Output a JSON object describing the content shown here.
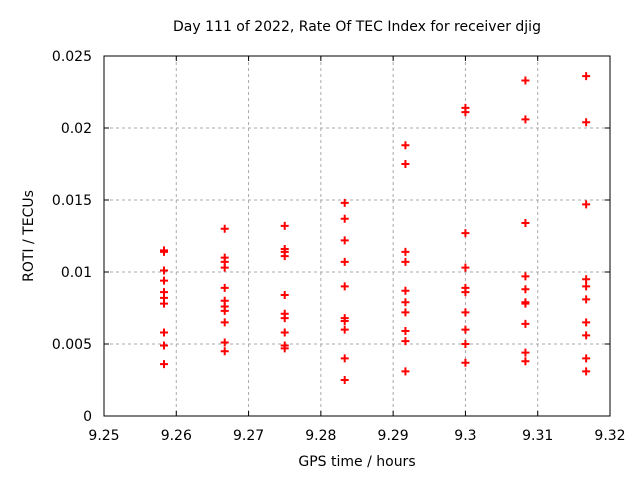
{
  "window": {
    "background": "#ffffff"
  },
  "chart_data": {
    "type": "scatter",
    "title": "Day 111 of 2022, Rate Of TEC Index for receiver djig",
    "xlabel": "GPS time / hours",
    "ylabel": "ROTI / TECUs",
    "xlim": [
      9.25,
      9.32
    ],
    "ylim": [
      0,
      0.025
    ],
    "xticks": [
      9.25,
      9.26,
      9.27,
      9.28,
      9.29,
      9.3,
      9.31,
      9.32
    ],
    "xtick_labels": [
      "9.25",
      "9.26",
      "9.27",
      "9.28",
      "9.29",
      "9.3",
      "9.31",
      "9.32"
    ],
    "yticks": [
      0,
      0.005,
      0.01,
      0.015,
      0.02,
      0.025
    ],
    "ytick_labels": [
      "0",
      "0.005",
      "0.01",
      "0.015",
      "0.02",
      "0.025"
    ],
    "grid": true,
    "legend": "none",
    "marker": "plus",
    "marker_color": "#ff0000",
    "grid_color": "#aaaaaa",
    "border_color": "#000000",
    "series": [
      {
        "name": "roti",
        "points": [
          [
            9.2583,
            0.0115
          ],
          [
            9.2583,
            0.0114
          ],
          [
            9.2583,
            0.0101
          ],
          [
            9.2583,
            0.0094
          ],
          [
            9.2583,
            0.0086
          ],
          [
            9.2583,
            0.0082
          ],
          [
            9.2583,
            0.0078
          ],
          [
            9.2583,
            0.0058
          ],
          [
            9.2583,
            0.0049
          ],
          [
            9.2583,
            0.0036
          ],
          [
            9.2667,
            0.013
          ],
          [
            9.2667,
            0.011
          ],
          [
            9.2667,
            0.0107
          ],
          [
            9.2667,
            0.0103
          ],
          [
            9.2667,
            0.0089
          ],
          [
            9.2667,
            0.008
          ],
          [
            9.2667,
            0.0076
          ],
          [
            9.2667,
            0.0073
          ],
          [
            9.2667,
            0.0065
          ],
          [
            9.2667,
            0.0051
          ],
          [
            9.2667,
            0.0045
          ],
          [
            9.275,
            0.0132
          ],
          [
            9.275,
            0.0116
          ],
          [
            9.275,
            0.0114
          ],
          [
            9.275,
            0.0111
          ],
          [
            9.275,
            0.0084
          ],
          [
            9.275,
            0.0071
          ],
          [
            9.275,
            0.0068
          ],
          [
            9.275,
            0.0058
          ],
          [
            9.275,
            0.0049
          ],
          [
            9.275,
            0.0047
          ],
          [
            9.2833,
            0.0148
          ],
          [
            9.2833,
            0.0137
          ],
          [
            9.2833,
            0.0122
          ],
          [
            9.2833,
            0.0107
          ],
          [
            9.2833,
            0.009
          ],
          [
            9.2833,
            0.0068
          ],
          [
            9.2833,
            0.0066
          ],
          [
            9.2833,
            0.006
          ],
          [
            9.2833,
            0.004
          ],
          [
            9.2833,
            0.0025
          ],
          [
            9.2917,
            0.0188
          ],
          [
            9.2917,
            0.0175
          ],
          [
            9.2917,
            0.0114
          ],
          [
            9.2917,
            0.0107
          ],
          [
            9.2917,
            0.0087
          ],
          [
            9.2917,
            0.0079
          ],
          [
            9.2917,
            0.0072
          ],
          [
            9.2917,
            0.0059
          ],
          [
            9.2917,
            0.0052
          ],
          [
            9.2917,
            0.0031
          ],
          [
            9.3,
            0.0214
          ],
          [
            9.3,
            0.0211
          ],
          [
            9.3,
            0.0127
          ],
          [
            9.3,
            0.0103
          ],
          [
            9.3,
            0.0089
          ],
          [
            9.3,
            0.0086
          ],
          [
            9.3,
            0.0072
          ],
          [
            9.3,
            0.006
          ],
          [
            9.3,
            0.005
          ],
          [
            9.3,
            0.0037
          ],
          [
            9.3083,
            0.0233
          ],
          [
            9.3083,
            0.0206
          ],
          [
            9.3083,
            0.0134
          ],
          [
            9.3083,
            0.0097
          ],
          [
            9.3083,
            0.0088
          ],
          [
            9.3083,
            0.0079
          ],
          [
            9.3083,
            0.0078
          ],
          [
            9.3083,
            0.0064
          ],
          [
            9.3083,
            0.0044
          ],
          [
            9.3083,
            0.0038
          ],
          [
            9.3167,
            0.0236
          ],
          [
            9.3167,
            0.0204
          ],
          [
            9.3167,
            0.0147
          ],
          [
            9.3167,
            0.0095
          ],
          [
            9.3167,
            0.009
          ],
          [
            9.3167,
            0.0081
          ],
          [
            9.3167,
            0.0065
          ],
          [
            9.3167,
            0.0056
          ],
          [
            9.3167,
            0.004
          ],
          [
            9.3167,
            0.0031
          ]
        ]
      }
    ]
  }
}
